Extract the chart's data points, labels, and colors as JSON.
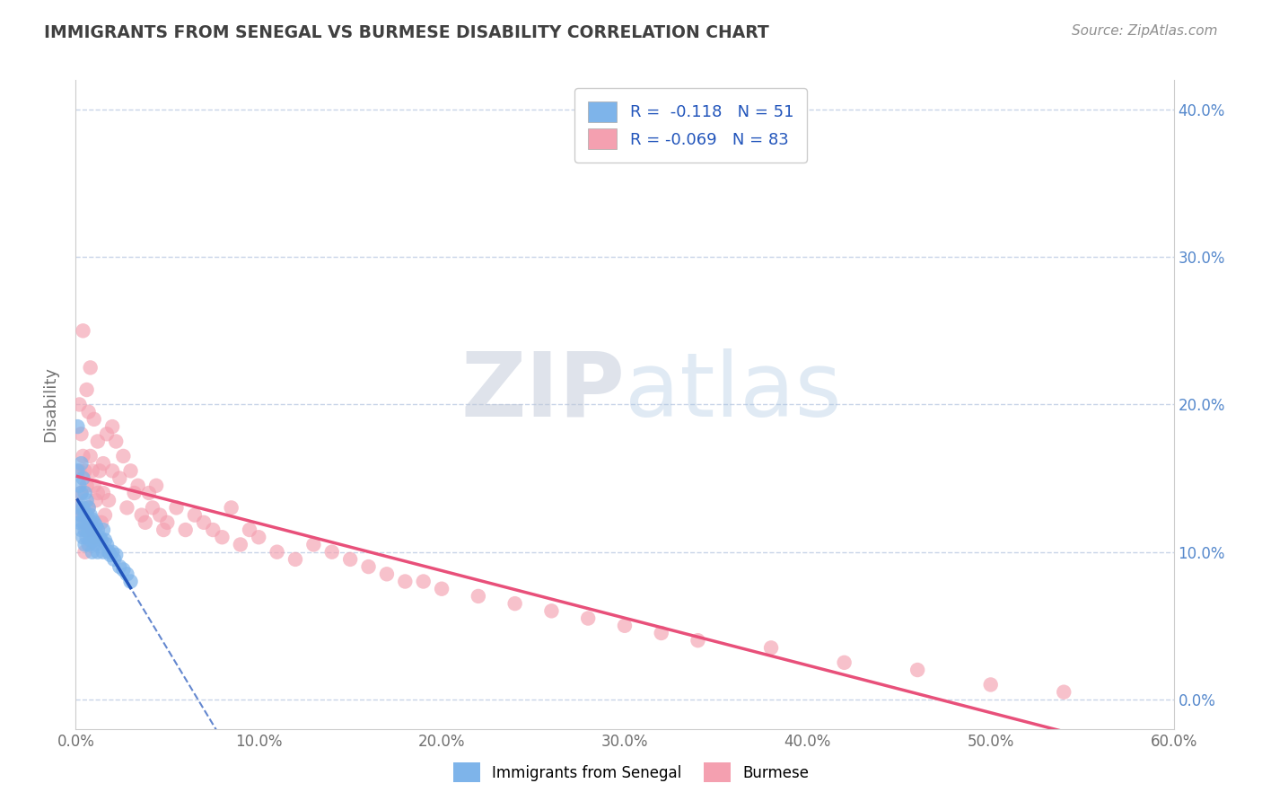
{
  "title": "IMMIGRANTS FROM SENEGAL VS BURMESE DISABILITY CORRELATION CHART",
  "source": "Source: ZipAtlas.com",
  "ylabel": "Disability",
  "watermark_zip": "ZIP",
  "watermark_atlas": "atlas",
  "legend_labels": [
    "Immigrants from Senegal",
    "Burmese"
  ],
  "r_senegal": -0.118,
  "n_senegal": 51,
  "r_burmese": -0.069,
  "n_burmese": 83,
  "xlim": [
    0.0,
    0.6
  ],
  "ylim": [
    -0.02,
    0.42
  ],
  "yticks": [
    0.0,
    0.1,
    0.2,
    0.3,
    0.4
  ],
  "xticks": [
    0.0,
    0.1,
    0.2,
    0.3,
    0.4,
    0.5,
    0.6
  ],
  "color_senegal": "#7EB4EA",
  "color_burmese": "#F4A0B0",
  "trendline_color_senegal": "#2255BB",
  "trendline_color_burmese": "#E8507A",
  "bg_color": "#FFFFFF",
  "grid_color": "#C8D4E8",
  "title_color": "#404040",
  "axis_label_color": "#707070",
  "tick_label_color_x": "#707070",
  "tick_label_color_y": "#5588CC",
  "senegal_x": [
    0.001,
    0.002,
    0.002,
    0.003,
    0.003,
    0.003,
    0.004,
    0.004,
    0.004,
    0.005,
    0.005,
    0.005,
    0.005,
    0.006,
    0.006,
    0.006,
    0.007,
    0.007,
    0.007,
    0.007,
    0.008,
    0.008,
    0.008,
    0.009,
    0.009,
    0.009,
    0.01,
    0.01,
    0.011,
    0.011,
    0.012,
    0.012,
    0.013,
    0.014,
    0.015,
    0.015,
    0.016,
    0.017,
    0.018,
    0.019,
    0.02,
    0.021,
    0.022,
    0.024,
    0.026,
    0.028,
    0.03,
    0.001,
    0.002,
    0.003,
    0.004
  ],
  "senegal_y": [
    0.185,
    0.13,
    0.12,
    0.14,
    0.125,
    0.115,
    0.13,
    0.12,
    0.11,
    0.14,
    0.125,
    0.115,
    0.105,
    0.135,
    0.125,
    0.11,
    0.13,
    0.12,
    0.115,
    0.105,
    0.125,
    0.118,
    0.108,
    0.122,
    0.112,
    0.1,
    0.12,
    0.108,
    0.118,
    0.105,
    0.115,
    0.1,
    0.11,
    0.108,
    0.115,
    0.1,
    0.108,
    0.105,
    0.1,
    0.098,
    0.1,
    0.095,
    0.098,
    0.09,
    0.088,
    0.085,
    0.08,
    0.155,
    0.145,
    0.16,
    0.15
  ],
  "burmese_x": [
    0.001,
    0.002,
    0.002,
    0.003,
    0.003,
    0.004,
    0.004,
    0.005,
    0.005,
    0.005,
    0.006,
    0.006,
    0.007,
    0.007,
    0.008,
    0.008,
    0.009,
    0.009,
    0.01,
    0.01,
    0.011,
    0.012,
    0.013,
    0.014,
    0.015,
    0.016,
    0.017,
    0.018,
    0.02,
    0.022,
    0.024,
    0.026,
    0.028,
    0.03,
    0.032,
    0.034,
    0.036,
    0.038,
    0.04,
    0.042,
    0.044,
    0.046,
    0.048,
    0.05,
    0.055,
    0.06,
    0.065,
    0.07,
    0.075,
    0.08,
    0.085,
    0.09,
    0.095,
    0.1,
    0.11,
    0.12,
    0.13,
    0.14,
    0.15,
    0.16,
    0.17,
    0.18,
    0.19,
    0.2,
    0.22,
    0.24,
    0.26,
    0.28,
    0.3,
    0.32,
    0.34,
    0.38,
    0.42,
    0.46,
    0.5,
    0.54,
    0.004,
    0.006,
    0.008,
    0.01,
    0.012,
    0.015,
    0.02
  ],
  "burmese_y": [
    0.13,
    0.2,
    0.155,
    0.18,
    0.14,
    0.165,
    0.125,
    0.155,
    0.12,
    0.1,
    0.145,
    0.115,
    0.195,
    0.13,
    0.165,
    0.12,
    0.155,
    0.115,
    0.145,
    0.11,
    0.135,
    0.14,
    0.155,
    0.12,
    0.14,
    0.125,
    0.18,
    0.135,
    0.155,
    0.175,
    0.15,
    0.165,
    0.13,
    0.155,
    0.14,
    0.145,
    0.125,
    0.12,
    0.14,
    0.13,
    0.145,
    0.125,
    0.115,
    0.12,
    0.13,
    0.115,
    0.125,
    0.12,
    0.115,
    0.11,
    0.13,
    0.105,
    0.115,
    0.11,
    0.1,
    0.095,
    0.105,
    0.1,
    0.095,
    0.09,
    0.085,
    0.08,
    0.08,
    0.075,
    0.07,
    0.065,
    0.06,
    0.055,
    0.05,
    0.045,
    0.04,
    0.035,
    0.025,
    0.02,
    0.01,
    0.005,
    0.25,
    0.21,
    0.225,
    0.19,
    0.175,
    0.16,
    0.185
  ]
}
